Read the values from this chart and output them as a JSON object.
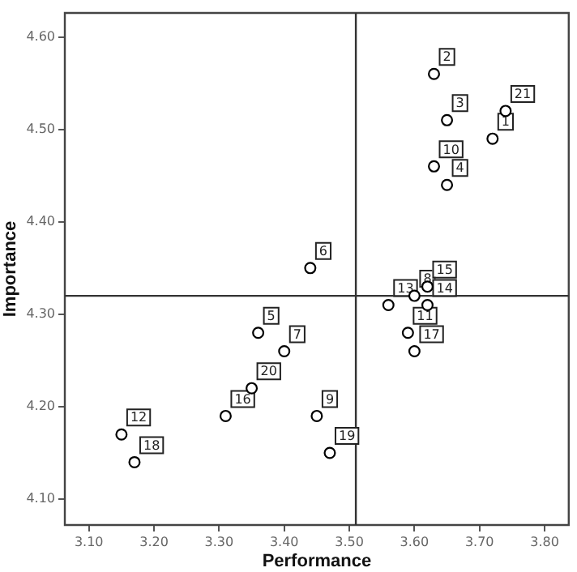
{
  "chart_data": {
    "type": "scatter",
    "xlabel": "Performance",
    "ylabel": "Importance",
    "x": [
      3.72,
      3.63,
      3.65,
      3.65,
      3.36,
      3.44,
      3.4,
      3.6,
      3.45,
      3.63,
      3.59,
      3.15,
      3.56,
      3.62,
      3.62,
      3.31,
      3.6,
      3.17,
      3.47,
      3.35,
      3.74
    ],
    "series": [
      {
        "color": "#000000",
        "values": [
          4.49,
          4.56,
          4.51,
          4.44,
          4.28,
          4.35,
          4.26,
          4.32,
          4.19,
          4.46,
          4.28,
          4.17,
          4.31,
          4.31,
          4.33,
          4.19,
          4.26,
          4.14,
          4.15,
          4.22,
          4.52
        ]
      }
    ],
    "annotations": [
      {
        "text": "1",
        "x": 3.72,
        "y": 4.49
      },
      {
        "text": "2",
        "x": 3.63,
        "y": 4.56
      },
      {
        "text": "3",
        "x": 3.65,
        "y": 4.51
      },
      {
        "text": "4",
        "x": 3.65,
        "y": 4.44
      },
      {
        "text": "5",
        "x": 3.36,
        "y": 4.28
      },
      {
        "text": "6",
        "x": 3.44,
        "y": 4.35
      },
      {
        "text": "7",
        "x": 3.4,
        "y": 4.26
      },
      {
        "text": "8",
        "x": 3.6,
        "y": 4.32
      },
      {
        "text": "9",
        "x": 3.45,
        "y": 4.19
      },
      {
        "text": "10",
        "x": 3.63,
        "y": 4.46
      },
      {
        "text": "11",
        "x": 3.59,
        "y": 4.28
      },
      {
        "text": "12",
        "x": 3.15,
        "y": 4.17
      },
      {
        "text": "13",
        "x": 3.56,
        "y": 4.31
      },
      {
        "text": "14",
        "x": 3.62,
        "y": 4.31
      },
      {
        "text": "15",
        "x": 3.62,
        "y": 4.33
      },
      {
        "text": "16",
        "x": 3.31,
        "y": 4.19
      },
      {
        "text": "17",
        "x": 3.6,
        "y": 4.26
      },
      {
        "text": "18",
        "x": 3.17,
        "y": 4.14
      },
      {
        "text": "19",
        "x": 3.47,
        "y": 4.15
      },
      {
        "text": "20",
        "x": 3.35,
        "y": 4.22
      },
      {
        "text": "21",
        "x": 3.74,
        "y": 4.52
      }
    ],
    "xlim": [
      3.063,
      3.837
    ],
    "ylim": [
      4.072,
      4.626
    ],
    "xticks": [
      {
        "value": 3.1,
        "label": "3.10"
      },
      {
        "value": 3.2,
        "label": "3.20"
      },
      {
        "value": 3.3,
        "label": "3.30"
      },
      {
        "value": 3.4,
        "label": "3.40"
      },
      {
        "value": 3.5,
        "label": "3.50"
      },
      {
        "value": 3.6,
        "label": "3.60"
      },
      {
        "value": 3.7,
        "label": "3.70"
      },
      {
        "value": 3.8,
        "label": "3.80"
      }
    ],
    "yticks": [
      {
        "value": 4.1,
        "label": "4.10"
      },
      {
        "value": 4.2,
        "label": "4.20"
      },
      {
        "value": 4.3,
        "label": "4.30"
      },
      {
        "value": 4.4,
        "label": "4.40"
      },
      {
        "value": 4.5,
        "label": "4.50"
      },
      {
        "value": 4.6,
        "label": "4.60"
      }
    ],
    "ref_lines": [
      {
        "axis": "x",
        "value": 3.51,
        "color": "#333333"
      },
      {
        "axis": "y",
        "value": 4.32,
        "color": "#333333"
      }
    ],
    "marker": "circle",
    "grid": false,
    "legend": false
  }
}
